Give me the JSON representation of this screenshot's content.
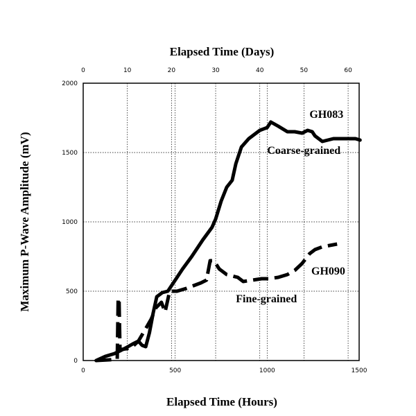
{
  "chart_data": {
    "type": "line",
    "title": "",
    "xlabel": "Elapsed Time (Hours)",
    "x2label": "Elapsed Time (Days)",
    "ylabel": "Maximum P-Wave Amplitude (mV)",
    "xlim": [
      0,
      1500
    ],
    "ylim": [
      0,
      2000
    ],
    "x_ticks": [
      0,
      500,
      1000,
      1500
    ],
    "x_tick_labels": [
      "0",
      "500",
      "1000",
      "1500"
    ],
    "x2_ticks": [
      0,
      10,
      20,
      30,
      40,
      50,
      60
    ],
    "x2_tick_labels": [
      "0",
      "10",
      "20",
      "30",
      "40",
      "50",
      "60"
    ],
    "y_ticks": [
      0,
      500,
      1000,
      1500,
      2000
    ],
    "y_tick_labels": [
      "0",
      "500",
      "1000",
      "1500",
      "2000"
    ],
    "grid": true,
    "series": [
      {
        "name": "GH083",
        "style": "solid",
        "color": "#000000",
        "x": [
          70,
          120,
          170,
          200,
          230,
          270,
          300,
          320,
          340,
          360,
          380,
          400,
          430,
          460,
          500,
          540,
          590,
          650,
          700,
          720,
          750,
          780,
          810,
          830,
          860,
          900,
          960,
          1000,
          1020,
          1060,
          1110,
          1150,
          1190,
          1220,
          1245,
          1260,
          1300,
          1360,
          1400,
          1440,
          1480,
          1505
        ],
        "y": [
          0,
          30,
          50,
          70,
          90,
          120,
          140,
          110,
          100,
          200,
          340,
          460,
          490,
          500,
          580,
          660,
          750,
          870,
          960,
          1020,
          1150,
          1250,
          1300,
          1420,
          1540,
          1600,
          1660,
          1680,
          1720,
          1690,
          1650,
          1650,
          1640,
          1660,
          1650,
          1620,
          1580,
          1600,
          1600,
          1600,
          1600,
          1590
        ]
      },
      {
        "name": "GH090",
        "style": "dashed",
        "color": "#000000",
        "x": [
          70,
          140,
          185,
          190,
          195,
          200,
          210,
          260,
          300,
          340,
          370,
          395,
          425,
          445,
          470,
          510,
          560,
          600,
          640,
          670,
          690,
          710,
          740,
          780,
          810,
          840,
          870,
          920,
          970,
          1010,
          1060,
          1110,
          1150,
          1190,
          1230,
          1260,
          1300,
          1340,
          1380
        ],
        "y": [
          0,
          5,
          10,
          440,
          450,
          70,
          80,
          90,
          140,
          230,
          300,
          380,
          420,
          350,
          500,
          500,
          520,
          540,
          560,
          580,
          720,
          720,
          660,
          620,
          610,
          600,
          570,
          580,
          590,
          590,
          600,
          620,
          650,
          700,
          770,
          800,
          820,
          830,
          840
        ]
      }
    ],
    "annotations": [
      {
        "text": "GH083",
        "x": 1230,
        "y": 1750
      },
      {
        "text": "Coarse-grained",
        "x": 1000,
        "y": 1490
      },
      {
        "text": "GH090",
        "x": 1240,
        "y": 620
      },
      {
        "text": "Fine-grained",
        "x": 830,
        "y": 420
      }
    ]
  }
}
